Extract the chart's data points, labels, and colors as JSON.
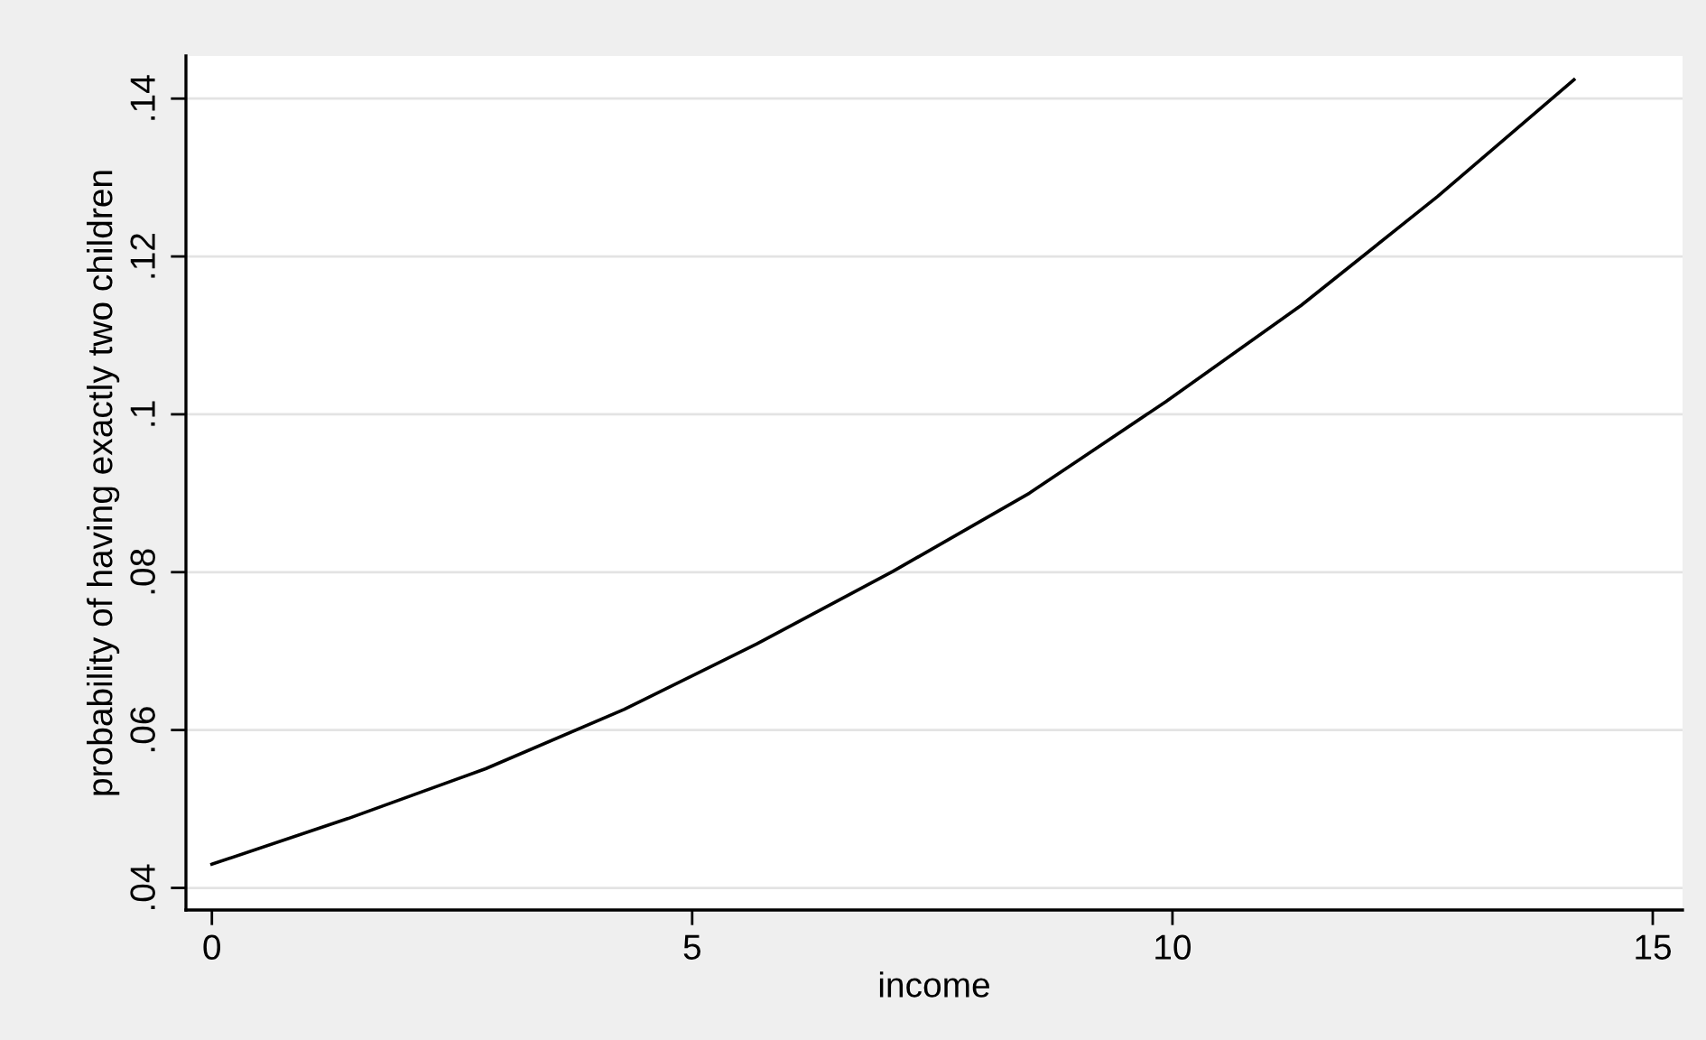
{
  "chart_data": {
    "type": "line",
    "xlabel": "income",
    "ylabel": "probability of having exactly two children",
    "x": [
      0,
      1.42,
      2.85,
      4.29,
      5.67,
      7.09,
      8.51,
      9.93,
      11.34,
      12.76,
      14.18
    ],
    "series": [
      {
        "color": "#000000",
        "values": [
          0.043,
          0.0488,
          0.0551,
          0.0626,
          0.0709,
          0.0801,
          0.09,
          0.1016,
          0.1138,
          0.1276,
          0.1424
        ]
      }
    ],
    "xlim": [
      -0.27,
      15.31
    ],
    "ylim": [
      0.0372,
      0.1454
    ],
    "xticks": [
      0,
      5,
      10,
      15
    ],
    "yticks": [
      {
        "value": 0.04,
        "label": ".04"
      },
      {
        "value": 0.06,
        "label": ".06"
      },
      {
        "value": 0.08,
        "label": ".08"
      },
      {
        "value": 0.1,
        "label": ".1"
      },
      {
        "value": 0.12,
        "label": ".12"
      },
      {
        "value": 0.14,
        "label": ".14"
      }
    ],
    "grid": "y",
    "marker": "none",
    "line_style": "solid"
  }
}
